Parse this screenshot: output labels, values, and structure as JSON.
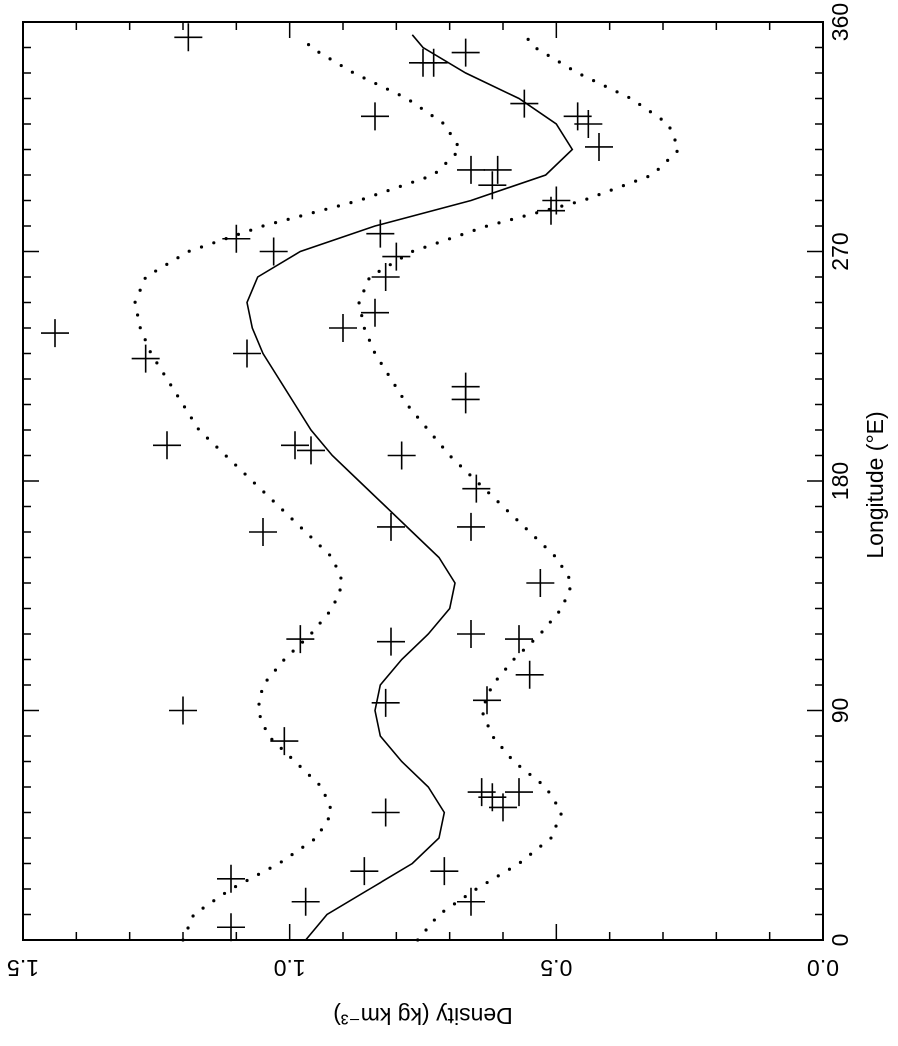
{
  "chart_data": {
    "type": "scatter",
    "title": "",
    "orientation": "rotated-90",
    "xlabel": "Longitude (°E)",
    "ylabel": "Density (kg km⁻³)",
    "xlim": [
      0,
      360
    ],
    "ylim": [
      0.0,
      1.5
    ],
    "x_ticks": [
      0,
      90,
      180,
      270,
      360
    ],
    "x_tick_labels": [
      "0",
      "90",
      "180",
      "270",
      "360"
    ],
    "y_ticks": [
      0.0,
      0.5,
      1.0,
      1.5
    ],
    "y_tick_labels": [
      "0.0",
      "0.5",
      "1.0",
      "1.5"
    ],
    "grid": false,
    "legend": "none",
    "series": [
      {
        "kind": "points",
        "marker": "plus",
        "points": [
          [
            5,
            1.11
          ],
          [
            15,
            0.97
          ],
          [
            15,
            0.66
          ],
          [
            24,
            1.11
          ],
          [
            27,
            0.86
          ],
          [
            27,
            0.71
          ],
          [
            50,
            0.82
          ],
          [
            52,
            0.6
          ],
          [
            56,
            0.62
          ],
          [
            58,
            0.57
          ],
          [
            58,
            0.64
          ],
          [
            78,
            1.01
          ],
          [
            90,
            1.2
          ],
          [
            93,
            0.82
          ],
          [
            94,
            0.63
          ],
          [
            104,
            0.55
          ],
          [
            117,
            0.81
          ],
          [
            118,
            0.98
          ],
          [
            118,
            0.57
          ],
          [
            120,
            0.66
          ],
          [
            140,
            0.53
          ],
          [
            160,
            1.05
          ],
          [
            162,
            0.81
          ],
          [
            162,
            0.66
          ],
          [
            177,
            0.65
          ],
          [
            190,
            0.79
          ],
          [
            192,
            0.96
          ],
          [
            194,
            0.99
          ],
          [
            194,
            1.23
          ],
          [
            212,
            0.67
          ],
          [
            217,
            0.67
          ],
          [
            228,
            1.27
          ],
          [
            230,
            1.08
          ],
          [
            238,
            1.44
          ],
          [
            240,
            0.9
          ],
          [
            246,
            0.84
          ],
          [
            260,
            0.82
          ],
          [
            270,
            1.03
          ],
          [
            268,
            0.8
          ],
          [
            275,
            1.1
          ],
          [
            277,
            0.83
          ],
          [
            286,
            0.51
          ],
          [
            290,
            0.5
          ],
          [
            296,
            0.62
          ],
          [
            302,
            0.61
          ],
          [
            302,
            0.66
          ],
          [
            311,
            0.42
          ],
          [
            320,
            0.44
          ],
          [
            323,
            0.46
          ],
          [
            323,
            0.84
          ],
          [
            328,
            0.56
          ],
          [
            344,
            0.75
          ],
          [
            344,
            0.73
          ],
          [
            348,
            0.67
          ],
          [
            354,
            1.19
          ]
        ]
      },
      {
        "kind": "line",
        "style": "solid",
        "points": [
          [
            0,
            0.97
          ],
          [
            10,
            0.93
          ],
          [
            20,
            0.85
          ],
          [
            30,
            0.77
          ],
          [
            40,
            0.72
          ],
          [
            50,
            0.71
          ],
          [
            60,
            0.74
          ],
          [
            70,
            0.79
          ],
          [
            80,
            0.83
          ],
          [
            90,
            0.84
          ],
          [
            100,
            0.83
          ],
          [
            110,
            0.79
          ],
          [
            120,
            0.74
          ],
          [
            130,
            0.7
          ],
          [
            140,
            0.69
          ],
          [
            150,
            0.72
          ],
          [
            160,
            0.77
          ],
          [
            170,
            0.82
          ],
          [
            180,
            0.87
          ],
          [
            190,
            0.92
          ],
          [
            200,
            0.96
          ],
          [
            210,
            0.99
          ],
          [
            220,
            1.02
          ],
          [
            230,
            1.05
          ],
          [
            240,
            1.07
          ],
          [
            250,
            1.08
          ],
          [
            260,
            1.06
          ],
          [
            270,
            0.98
          ],
          [
            280,
            0.84
          ],
          [
            290,
            0.66
          ],
          [
            300,
            0.52
          ],
          [
            310,
            0.47
          ],
          [
            320,
            0.5
          ],
          [
            330,
            0.57
          ],
          [
            340,
            0.67
          ],
          [
            350,
            0.75
          ],
          [
            355,
            0.77
          ]
        ]
      },
      {
        "kind": "line",
        "style": "dotted",
        "points": [
          [
            0,
            1.2
          ],
          [
            10,
            1.18
          ],
          [
            20,
            1.11
          ],
          [
            30,
            1.02
          ],
          [
            40,
            0.95
          ],
          [
            50,
            0.92
          ],
          [
            60,
            0.94
          ],
          [
            70,
            0.99
          ],
          [
            80,
            1.04
          ],
          [
            90,
            1.06
          ],
          [
            100,
            1.05
          ],
          [
            110,
            1.01
          ],
          [
            120,
            0.96
          ],
          [
            130,
            0.92
          ],
          [
            140,
            0.9
          ],
          [
            150,
            0.92
          ],
          [
            160,
            0.97
          ],
          [
            170,
            1.02
          ],
          [
            180,
            1.07
          ],
          [
            190,
            1.12
          ],
          [
            200,
            1.17
          ],
          [
            210,
            1.2
          ],
          [
            220,
            1.23
          ],
          [
            230,
            1.26
          ],
          [
            240,
            1.28
          ],
          [
            250,
            1.29
          ],
          [
            260,
            1.27
          ],
          [
            270,
            1.19
          ],
          [
            280,
            1.05
          ],
          [
            290,
            0.87
          ],
          [
            300,
            0.73
          ],
          [
            310,
            0.68
          ],
          [
            320,
            0.71
          ],
          [
            330,
            0.78
          ],
          [
            340,
            0.88
          ],
          [
            350,
            0.96
          ],
          [
            355,
            0.98
          ]
        ]
      },
      {
        "kind": "line",
        "style": "dotted",
        "points": [
          [
            0,
            0.76
          ],
          [
            10,
            0.72
          ],
          [
            20,
            0.65
          ],
          [
            30,
            0.57
          ],
          [
            40,
            0.51
          ],
          [
            50,
            0.49
          ],
          [
            60,
            0.52
          ],
          [
            70,
            0.58
          ],
          [
            80,
            0.62
          ],
          [
            90,
            0.64
          ],
          [
            100,
            0.62
          ],
          [
            110,
            0.58
          ],
          [
            120,
            0.53
          ],
          [
            130,
            0.49
          ],
          [
            140,
            0.47
          ],
          [
            150,
            0.5
          ],
          [
            160,
            0.55
          ],
          [
            170,
            0.6
          ],
          [
            180,
            0.65
          ],
          [
            190,
            0.7
          ],
          [
            200,
            0.74
          ],
          [
            210,
            0.78
          ],
          [
            220,
            0.81
          ],
          [
            230,
            0.84
          ],
          [
            240,
            0.86
          ],
          [
            250,
            0.87
          ],
          [
            260,
            0.85
          ],
          [
            270,
            0.77
          ],
          [
            280,
            0.63
          ],
          [
            290,
            0.45
          ],
          [
            300,
            0.32
          ],
          [
            310,
            0.27
          ],
          [
            320,
            0.29
          ],
          [
            330,
            0.36
          ],
          [
            340,
            0.46
          ],
          [
            350,
            0.54
          ],
          [
            355,
            0.56
          ]
        ]
      }
    ]
  }
}
